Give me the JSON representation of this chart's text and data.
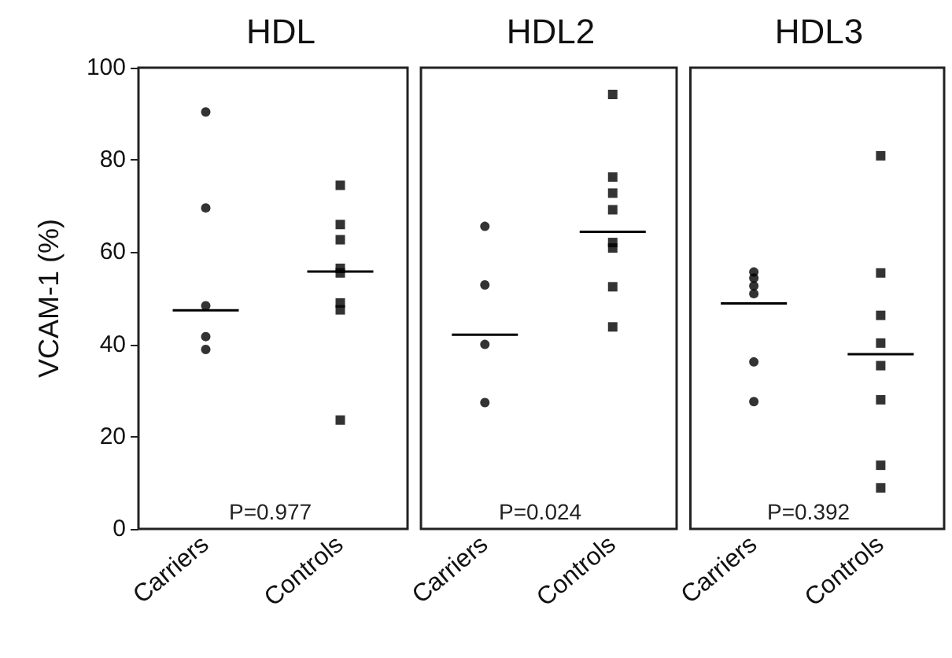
{
  "chart_data": [
    {
      "type": "scatter",
      "title": "HDL",
      "ylabel": "VCAM-1 (%)",
      "categories": [
        "Carriers",
        "Controls"
      ],
      "ylim": [
        0,
        100
      ],
      "yticks": [
        0,
        20,
        40,
        60,
        80,
        100
      ],
      "annotations": [
        "P=0.977"
      ],
      "series": [
        {
          "marker": "circle",
          "color": "#000000",
          "x": [
            "Carriers",
            "Carriers",
            "Carriers",
            "Carriers",
            "Carriers"
          ],
          "values": [
            90.4,
            69.6,
            48.4,
            41.7,
            38.9
          ]
        },
        {
          "marker": "square",
          "color": "#000000",
          "x": [
            "Controls",
            "Controls",
            "Controls",
            "Controls",
            "Controls",
            "Controls",
            "Controls",
            "Controls"
          ],
          "values": [
            74.5,
            66,
            62.7,
            56.5,
            55.5,
            49,
            47.5,
            23.6
          ]
        },
        {
          "type": "box",
          "color": "#000000",
          "boxes": [
            {
              "low": 47.4,
              "q1": 47.4,
              "median": 47.4,
              "q3": 47.4,
              "high": 47.4
            },
            {
              "low": 55.8,
              "q1": 55.8,
              "median": 55.8,
              "q3": 55.8,
              "high": 55.8
            }
          ]
        }
      ]
    },
    {
      "type": "scatter",
      "title": "HDL2",
      "categories": [
        "Carriers",
        "Controls"
      ],
      "ylim": [
        0,
        100
      ],
      "yticks": [
        0,
        20,
        40,
        60,
        80,
        100
      ],
      "tick_labels": "x",
      "annotations": [
        "P=0.024"
      ],
      "series": [
        {
          "marker": "circle",
          "color": "#000000",
          "x": [
            "Carriers",
            "Carriers",
            "Carriers",
            "Carriers"
          ],
          "values": [
            65.6,
            52.9,
            40,
            27.4
          ]
        },
        {
          "marker": "square",
          "color": "#000000",
          "x": [
            "Controls",
            "Controls",
            "Controls",
            "Controls",
            "Controls",
            "Controls",
            "Controls",
            "Controls"
          ],
          "values": [
            94.2,
            76.3,
            72.8,
            69.2,
            62.1,
            60.9,
            52.5,
            43.8
          ]
        },
        {
          "type": "box",
          "color": "#000000",
          "boxes": [
            {
              "low": 42.1,
              "q1": 42.1,
              "median": 42.1,
              "q3": 42.1,
              "high": 42.1
            },
            {
              "low": 64.4,
              "q1": 64.4,
              "median": 64.4,
              "q3": 64.4,
              "high": 64.4
            }
          ]
        }
      ]
    },
    {
      "type": "scatter",
      "title": "HDL3",
      "categories": [
        "Carriers",
        "Controls"
      ],
      "ylim": [
        0,
        100
      ],
      "yticks": [
        0,
        20,
        40,
        60,
        80,
        100
      ],
      "tick_labels": "x",
      "annotations": [
        "P=0.392"
      ],
      "series": [
        {
          "marker": "circle",
          "color": "#000000",
          "x": [
            "Carriers",
            "Carriers",
            "Carriers",
            "Carriers",
            "Carriers",
            "Carriers"
          ],
          "values": [
            55.7,
            54.4,
            52.7,
            51,
            36.2,
            27.6
          ]
        },
        {
          "marker": "square",
          "color": "#000000",
          "x": [
            "Controls",
            "Controls",
            "Controls",
            "Controls",
            "Controls",
            "Controls",
            "Controls",
            "Controls"
          ],
          "values": [
            80.9,
            55.5,
            46.3,
            40.3,
            35.4,
            28,
            13.8,
            8.9
          ]
        },
        {
          "type": "box",
          "color": "#000000",
          "boxes": [
            {
              "low": 48.9,
              "q1": 48.9,
              "median": 48.9,
              "q3": 48.9,
              "high": 48.9
            },
            {
              "low": 37.9,
              "q1": 37.9,
              "median": 37.9,
              "q3": 37.9,
              "high": 37.9
            }
          ]
        }
      ]
    }
  ]
}
